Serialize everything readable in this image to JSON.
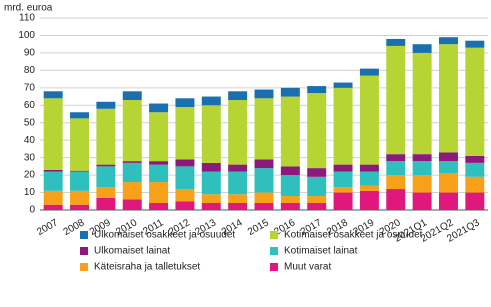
{
  "chart_data": {
    "type": "stacked-bar",
    "y_label": "mrd. euroa",
    "categories": [
      "2007",
      "2008",
      "2009",
      "2010",
      "2011",
      "2012",
      "2013",
      "2014",
      "2015",
      "2016",
      "2017",
      "2018",
      "2019",
      "2020",
      "2021Q1",
      "2021Q2",
      "2021Q3"
    ],
    "series": [
      {
        "name": "Muut varat",
        "color": "#e0177d",
        "values": [
          3,
          3,
          7,
          6,
          4,
          5,
          4,
          4,
          4,
          4,
          4,
          10,
          11,
          12,
          10,
          10,
          10
        ]
      },
      {
        "name": "Käteisraha ja talletukset",
        "color": "#f7a11a",
        "values": [
          8,
          8,
          6,
          10,
          12,
          7,
          5,
          5,
          6,
          4,
          4,
          3,
          3,
          8,
          10,
          11,
          9
        ]
      },
      {
        "name": "Kotimaiset lainat",
        "color": "#2fc0bd",
        "values": [
          11,
          11,
          12,
          11,
          10,
          13,
          13,
          13,
          14,
          12,
          11,
          9,
          8,
          8,
          8,
          7,
          8
        ]
      },
      {
        "name": "Ulkomaiset lainat",
        "color": "#8b1a7c",
        "values": [
          1,
          0.5,
          1,
          1,
          2,
          4,
          5,
          4,
          5,
          5,
          5,
          4,
          4,
          4,
          4,
          5,
          4
        ]
      },
      {
        "name": "Kotimaiset osakkeet ja osuudet",
        "color": "#b6d433",
        "values": [
          41,
          30,
          32,
          35,
          28,
          30,
          33,
          37,
          35,
          40,
          43,
          44,
          51,
          62,
          58,
          62,
          62
        ]
      },
      {
        "name": "Ulkomaiset osakkeet ja osuudet",
        "color": "#1a6fae",
        "values": [
          4,
          3.5,
          4,
          5,
          5,
          5,
          5,
          5,
          5,
          5,
          4,
          3,
          4,
          4,
          5,
          4,
          4
        ]
      }
    ],
    "ylim": [
      0,
      110
    ],
    "yticks": [
      0,
      10,
      20,
      30,
      40,
      50,
      60,
      70,
      80,
      90,
      100,
      110
    ],
    "grid": true
  }
}
